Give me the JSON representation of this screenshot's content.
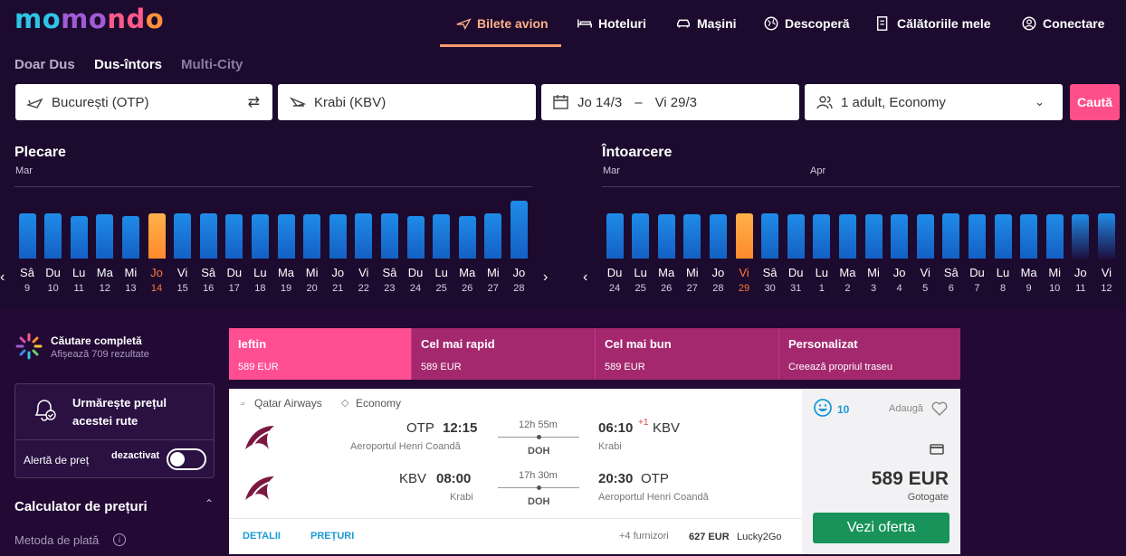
{
  "logo": {
    "p1": "mo",
    "p2": "mo",
    "p3": "nd",
    "p4": "o"
  },
  "nav": {
    "flights": "Bilete avion",
    "hotels": "Hoteluri",
    "cars": "Mașini",
    "discover": "Descoperă",
    "trips": "Călătoriile mele",
    "login": "Conectare"
  },
  "trip_type": {
    "oneway": "Doar Dus",
    "roundtrip": "Dus-întors",
    "multicity": "Multi-City"
  },
  "search": {
    "origin": "București (OTP)",
    "destination": "Krabi (KBV)",
    "date_from": "Jo 14/3",
    "date_sep": "–",
    "date_to": "Vi 29/3",
    "travelers": "1 adult, Economy",
    "search_button": "Caută"
  },
  "departure": {
    "title": "Plecare",
    "month": "Mar",
    "days": [
      {
        "d": "Sâ",
        "n": "9",
        "v": 0.63
      },
      {
        "d": "Du",
        "n": "10",
        "v": 0.63
      },
      {
        "d": "Lu",
        "n": "11",
        "v": 0.59
      },
      {
        "d": "Ma",
        "n": "12",
        "v": 0.61
      },
      {
        "d": "Mi",
        "n": "13",
        "v": 0.59
      },
      {
        "d": "Jo",
        "n": "14",
        "v": 0.63,
        "sel": true
      },
      {
        "d": "Vi",
        "n": "15",
        "v": 0.63
      },
      {
        "d": "Sâ",
        "n": "16",
        "v": 0.63
      },
      {
        "d": "Du",
        "n": "17",
        "v": 0.61
      },
      {
        "d": "Lu",
        "n": "18",
        "v": 0.61
      },
      {
        "d": "Ma",
        "n": "19",
        "v": 0.61
      },
      {
        "d": "Mi",
        "n": "20",
        "v": 0.61
      },
      {
        "d": "Jo",
        "n": "21",
        "v": 0.61
      },
      {
        "d": "Vi",
        "n": "22",
        "v": 0.63
      },
      {
        "d": "Sâ",
        "n": "23",
        "v": 0.63
      },
      {
        "d": "Du",
        "n": "24",
        "v": 0.59
      },
      {
        "d": "Lu",
        "n": "25",
        "v": 0.61
      },
      {
        "d": "Ma",
        "n": "26",
        "v": 0.59
      },
      {
        "d": "Mi",
        "n": "27",
        "v": 0.63
      },
      {
        "d": "Jo",
        "n": "28",
        "v": 0.8
      }
    ]
  },
  "return": {
    "title": "Întoarcere",
    "month1": "Mar",
    "month2": "Apr",
    "days": [
      {
        "d": "Du",
        "n": "24",
        "v": 0.63
      },
      {
        "d": "Lu",
        "n": "25",
        "v": 0.63
      },
      {
        "d": "Ma",
        "n": "26",
        "v": 0.61
      },
      {
        "d": "Mi",
        "n": "27",
        "v": 0.61
      },
      {
        "d": "Jo",
        "n": "28",
        "v": 0.61
      },
      {
        "d": "Vi",
        "n": "29",
        "v": 0.63,
        "sel": true
      },
      {
        "d": "Sâ",
        "n": "30",
        "v": 0.63
      },
      {
        "d": "Du",
        "n": "31",
        "v": 0.61
      },
      {
        "d": "Lu",
        "n": "1",
        "v": 0.61
      },
      {
        "d": "Ma",
        "n": "2",
        "v": 0.61
      },
      {
        "d": "Mi",
        "n": "3",
        "v": 0.61
      },
      {
        "d": "Jo",
        "n": "4",
        "v": 0.61
      },
      {
        "d": "Vi",
        "n": "5",
        "v": 0.61
      },
      {
        "d": "Sâ",
        "n": "6",
        "v": 0.63
      },
      {
        "d": "Du",
        "n": "7",
        "v": 0.61
      },
      {
        "d": "Lu",
        "n": "8",
        "v": 0.61
      },
      {
        "d": "Ma",
        "n": "9",
        "v": 0.61
      },
      {
        "d": "Mi",
        "n": "10",
        "v": 0.61
      },
      {
        "d": "Jo",
        "n": "11",
        "v": 0.61,
        "fade": true
      },
      {
        "d": "Vi",
        "n": "12",
        "v": 0.63,
        "fade": true
      }
    ]
  },
  "sidebar": {
    "complete_title": "Căutare completă",
    "complete_sub": "Afișează 709 rezultate",
    "watch_title1": "Urmărește prețul",
    "watch_title2": "acestei rute",
    "alert_label": "Alertă de preț",
    "alert_state": "dezactivat",
    "calc_title": "Calculator de prețuri",
    "payment_method": "Metoda de plată"
  },
  "sort_tabs": [
    {
      "label": "Ieftin",
      "price": "589 EUR"
    },
    {
      "label": "Cel mai rapid",
      "price": "589 EUR"
    },
    {
      "label": "Cel mai bun",
      "price": "589 EUR"
    },
    {
      "label": "Personalizat",
      "price": "Creează propriul traseu"
    }
  ],
  "result": {
    "airline": "Qatar Airways",
    "cabin": "Economy",
    "out": {
      "from_code": "OTP",
      "dep_time": "12:15",
      "from_airport": "Aeroportul Henri Coandă",
      "duration": "12h 55m",
      "stop": "DOH",
      "arr_time": "06:10",
      "plus": "+1",
      "to_code": "KBV",
      "to_city": "Krabi"
    },
    "back": {
      "from_code": "KBV",
      "dep_time": "08:00",
      "from_city": "Krabi",
      "duration": "17h 30m",
      "stop": "DOH",
      "arr_time": "20:30",
      "to_code": "OTP",
      "to_airport": "Aeroportul Henri Coandă"
    },
    "details": "DETALII",
    "prices": "PREȚURI",
    "providers": "+4 furnizori",
    "alt_price": "627 EUR",
    "alt_provider": "Lucky2Go",
    "score": "10",
    "add": "Adaugă",
    "price": "589 EUR",
    "provider": "Gotogate",
    "offer_button": "Vezi oferta"
  },
  "colors": {
    "accent": "#ff4f8b",
    "selected_bar": "#ff8a2c",
    "bar": "#1f8be8",
    "offer": "#19935a"
  }
}
